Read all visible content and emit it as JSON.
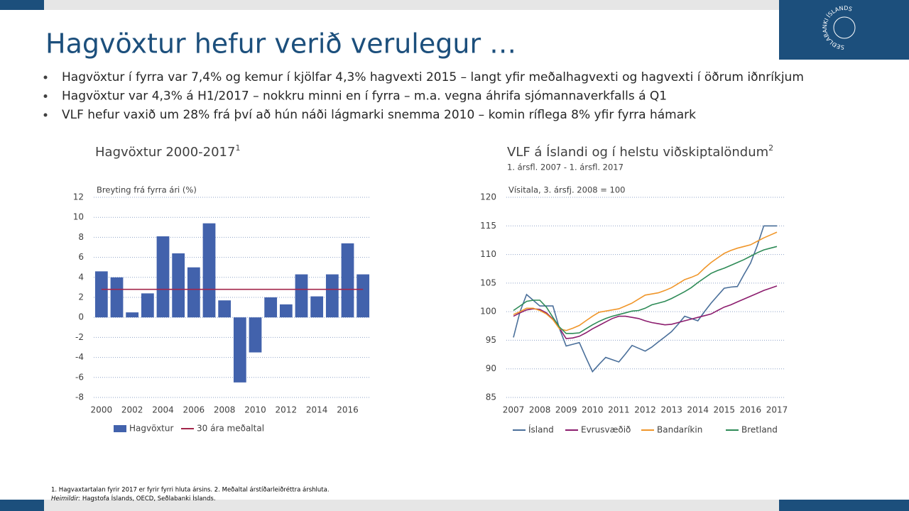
{
  "title": "Hagvöxtur hefur verið verulegur …",
  "logo_text": "SEÐLABANKI ÍSLANDS",
  "bullets": [
    "Hagvöxtur í fyrra var 7,4% og kemur í kjölfar 4,3% hagvexti 2015 – langt yfir meðalhagvexti og hagvexti í öðrum iðnríkjum",
    "Hagvöxtur var 4,3% á H1/2017 – nokkru minni en í fyrra – m.a. vegna áhrifa sjómannaverkfalls á Q1",
    "VLF hefur vaxið um 28% frá því að hún náði lágmarki snemma 2010 – komin ríflega 8% yfir fyrra hámark"
  ],
  "footnote": {
    "notes": "1. Hagvaxtartalan fyrir 2017 er fyrir fyrri hluta ársins. 2. Meðaltal árstíðarleiðréttra árshluta.",
    "sources_label": "Heimildir:",
    "sources": "Hagstofa Íslands, OECD, Seðlabanki Íslands."
  },
  "chart_data": [
    {
      "type": "bar",
      "title": "Hagvöxtur 2000-2017",
      "title_sup": "1",
      "y_label": "Breyting frá fyrra ári (%)",
      "categories": [
        "2000",
        null,
        "2002",
        null,
        "2004",
        null,
        "2006",
        null,
        "2008",
        null,
        "2010",
        null,
        "2012",
        null,
        "2014",
        null,
        "2016",
        null
      ],
      "series": [
        {
          "name": "Hagvöxtur",
          "type": "bar",
          "color": "#4262ac",
          "values": [
            4.6,
            4.0,
            0.5,
            2.4,
            8.1,
            6.4,
            5.0,
            9.4,
            1.7,
            -6.5,
            -3.5,
            2.0,
            1.3,
            4.3,
            2.1,
            4.3,
            7.4,
            4.3
          ]
        },
        {
          "name": "30 ára meðaltal",
          "type": "line",
          "color": "#a3254a",
          "values": [
            2.8,
            2.8,
            2.8,
            2.8,
            2.8,
            2.8,
            2.8,
            2.8,
            2.8,
            2.8,
            2.8,
            2.8,
            2.8,
            2.8,
            2.8,
            2.8,
            2.8,
            2.8
          ]
        }
      ],
      "ylim": [
        -8,
        12
      ],
      "yticks": [
        -8,
        -6,
        -4,
        -2,
        0,
        2,
        4,
        6,
        8,
        10,
        12
      ],
      "grid": true
    },
    {
      "type": "line",
      "title": "VLF á Íslandi og í helstu viðskiptalöndum",
      "title_sup": "2",
      "subtitle": "1. ársfl. 2007 - 1. ársfl. 2017",
      "y_label": "Vísitala, 3. ársfj. 2008 = 100",
      "categories": [
        "2007",
        null,
        null,
        null,
        "2008",
        null,
        null,
        null,
        "2009",
        null,
        null,
        null,
        "2010",
        null,
        null,
        null,
        "2011",
        null,
        null,
        null,
        "2012",
        null,
        null,
        null,
        "2013",
        null,
        null,
        null,
        "2014",
        null,
        null,
        null,
        "2015",
        null,
        null,
        null,
        "2016",
        null,
        null,
        null,
        "2017"
      ],
      "series": [
        {
          "name": "Ísland",
          "color": "#4a6f9a",
          "values": [
            95.5,
            100,
            103,
            102,
            101,
            101,
            101,
            97,
            94,
            94.3,
            94.6,
            92,
            89.5,
            90.8,
            92,
            91.6,
            91.2,
            92.6,
            94.1,
            93.6,
            93.1,
            93.8,
            94.7,
            95.6,
            96.5,
            97.8,
            99.2,
            98.8,
            98.4,
            100,
            101.5,
            102.8,
            104.1,
            104.3,
            104.4,
            106.5,
            108.5,
            111.5,
            115,
            115,
            115
          ]
        },
        {
          "name": "Evrusvæðið",
          "color": "#8c1d6e",
          "values": [
            99.2,
            99.8,
            100.3,
            100.5,
            100.4,
            99.8,
            98.7,
            97.1,
            95.3,
            95.4,
            95.7,
            96.3,
            97.0,
            97.6,
            98.2,
            98.8,
            99.2,
            99.2,
            99.0,
            98.8,
            98.4,
            98.1,
            97.9,
            97.7,
            97.8,
            98.1,
            98.4,
            98.7,
            99.0,
            99.3,
            99.6,
            100.2,
            100.8,
            101.2,
            101.7,
            102.2,
            102.7,
            103.2,
            103.7,
            104.1,
            104.5
          ]
        },
        {
          "name": "Bandaríkin",
          "color": "#f0962a",
          "values": [
            99.5,
            100.0,
            100.6,
            100.6,
            100.2,
            99.6,
            98.6,
            97.0,
            96.7,
            97.1,
            97.6,
            98.4,
            99.2,
            99.9,
            100.1,
            100.3,
            100.5,
            101.0,
            101.5,
            102.2,
            102.9,
            103.1,
            103.3,
            103.7,
            104.2,
            104.9,
            105.6,
            106.0,
            106.5,
            107.6,
            108.6,
            109.4,
            110.2,
            110.7,
            111.1,
            111.4,
            111.7,
            112.3,
            112.9,
            113.4,
            113.9
          ]
        },
        {
          "name": "Bretland",
          "color": "#2e8b57",
          "values": [
            100.2,
            101.0,
            101.8,
            102.0,
            102.0,
            100.8,
            99.0,
            97.3,
            96.2,
            96.2,
            96.3,
            97.0,
            97.7,
            98.3,
            98.8,
            99.2,
            99.5,
            99.8,
            100.1,
            100.2,
            100.6,
            101.2,
            101.5,
            101.8,
            102.3,
            102.9,
            103.5,
            104.2,
            105.1,
            105.9,
            106.7,
            107.2,
            107.6,
            108.1,
            108.6,
            109.1,
            109.7,
            110.3,
            110.8,
            111.1,
            111.4
          ]
        }
      ],
      "ylim": [
        85,
        120
      ],
      "yticks": [
        85,
        90,
        95,
        100,
        105,
        110,
        115,
        120
      ],
      "grid": true
    }
  ]
}
